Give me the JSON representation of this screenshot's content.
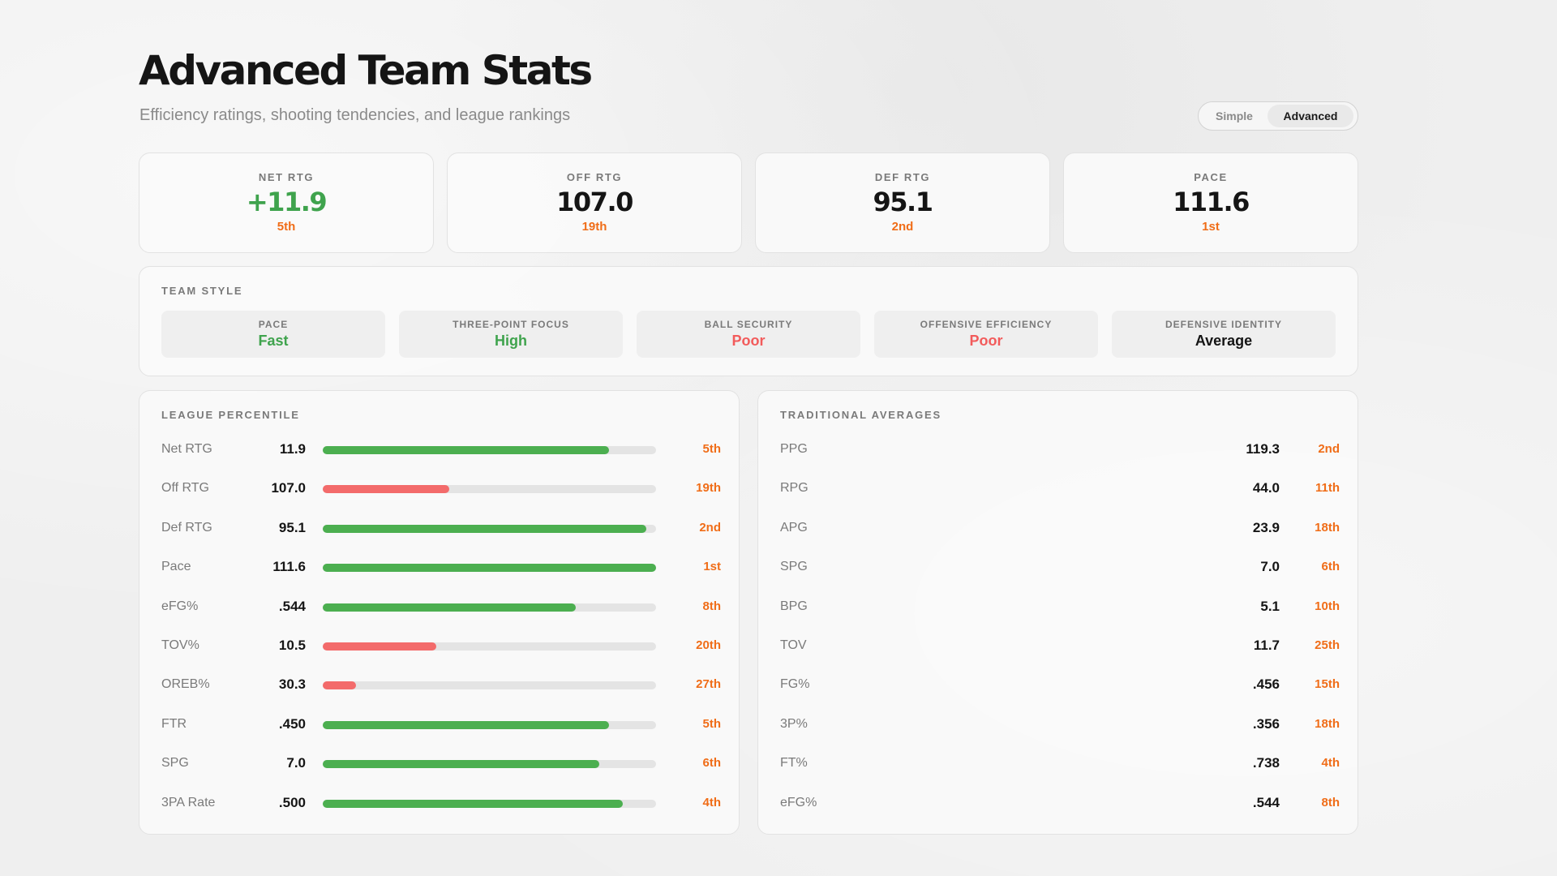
{
  "header": {
    "title": "Advanced Team Stats",
    "subtitle": "Efficiency ratings, shooting tendencies, and league rankings"
  },
  "view_toggle": {
    "options": [
      "Simple",
      "Advanced"
    ],
    "selected": "Advanced"
  },
  "kpis": [
    {
      "label": "NET RTG",
      "value": "+11.9",
      "rank": "5th",
      "positive": true
    },
    {
      "label": "OFF RTG",
      "value": "107.0",
      "rank": "19th",
      "positive": false
    },
    {
      "label": "DEF RTG",
      "value": "95.1",
      "rank": "2nd",
      "positive": false
    },
    {
      "label": "PACE",
      "value": "111.6",
      "rank": "1st",
      "positive": false
    }
  ],
  "team_style": {
    "label": "TEAM STYLE",
    "items": [
      {
        "title": "PACE",
        "value": "Fast",
        "tone": "green"
      },
      {
        "title": "THREE-POINT FOCUS",
        "value": "High",
        "tone": "green"
      },
      {
        "title": "BALL SECURITY",
        "value": "Poor",
        "tone": "red"
      },
      {
        "title": "OFFENSIVE EFFICIENCY",
        "value": "Poor",
        "tone": "red"
      },
      {
        "title": "DEFENSIVE IDENTITY",
        "value": "Average",
        "tone": "dark"
      }
    ]
  },
  "league_percentile": {
    "label": "LEAGUE PERCENTILE",
    "rows": [
      {
        "name": "Net RTG",
        "value": "11.9",
        "percentile": 0.86,
        "tone": "green",
        "rank": "5th"
      },
      {
        "name": "Off RTG",
        "value": "107.0",
        "percentile": 0.38,
        "tone": "red",
        "rank": "19th"
      },
      {
        "name": "Def RTG",
        "value": "95.1",
        "percentile": 0.97,
        "tone": "green",
        "rank": "2nd"
      },
      {
        "name": "Pace",
        "value": "111.6",
        "percentile": 1.0,
        "tone": "green",
        "rank": "1st"
      },
      {
        "name": "eFG%",
        "value": ".544",
        "percentile": 0.76,
        "tone": "green",
        "rank": "8th"
      },
      {
        "name": "TOV%",
        "value": "10.5",
        "percentile": 0.34,
        "tone": "red",
        "rank": "20th"
      },
      {
        "name": "OREB%",
        "value": "30.3",
        "percentile": 0.1,
        "tone": "red",
        "rank": "27th"
      },
      {
        "name": "FTR",
        "value": ".450",
        "percentile": 0.86,
        "tone": "green",
        "rank": "5th"
      },
      {
        "name": "SPG",
        "value": "7.0",
        "percentile": 0.83,
        "tone": "green",
        "rank": "6th"
      },
      {
        "name": "3PA Rate",
        "value": ".500",
        "percentile": 0.9,
        "tone": "green",
        "rank": "4th"
      }
    ]
  },
  "traditional_averages": {
    "label": "TRADITIONAL AVERAGES",
    "rows": [
      {
        "name": "PPG",
        "value": "119.3",
        "rank": "2nd"
      },
      {
        "name": "RPG",
        "value": "44.0",
        "rank": "11th"
      },
      {
        "name": "APG",
        "value": "23.9",
        "rank": "18th"
      },
      {
        "name": "SPG",
        "value": "7.0",
        "rank": "6th"
      },
      {
        "name": "BPG",
        "value": "5.1",
        "rank": "10th"
      },
      {
        "name": "TOV",
        "value": "11.7",
        "rank": "25th"
      },
      {
        "name": "FG%",
        "value": ".456",
        "rank": "15th"
      },
      {
        "name": "3P%",
        "value": ".356",
        "rank": "18th"
      },
      {
        "name": "FT%",
        "value": ".738",
        "rank": "4th"
      },
      {
        "name": "eFG%",
        "value": ".544",
        "rank": "8th"
      }
    ]
  },
  "colors": {
    "green": "#4caf50",
    "red": "#f36b6b",
    "rank_orange": "#f06d18",
    "text_dark": "#151515"
  }
}
